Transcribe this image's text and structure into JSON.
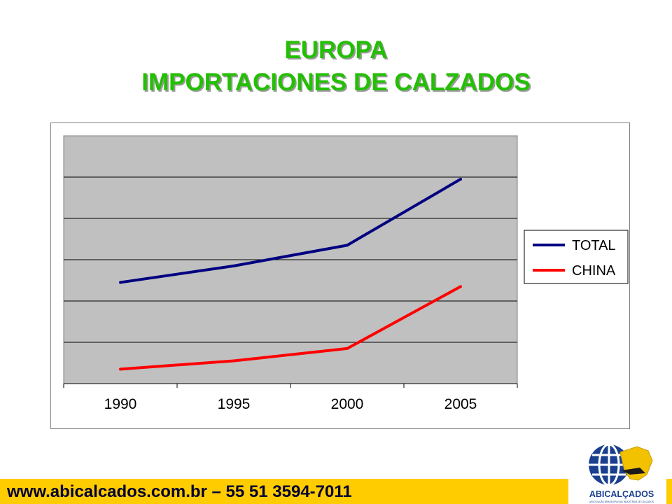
{
  "page": {
    "title_line1": "EUROPA",
    "title_line2": "IMPORTACIONES DE CALZADOS",
    "footer_text": "www.abicalcados.com.br – 55 51 3594-7011",
    "logo_text": "ABICALÇADOS",
    "logo_subtext": "ASSOCIAÇÃO BRASILEIRA DAS INDÚSTRIAS DE CALÇADOS",
    "colors": {
      "title": "#22c000",
      "plot_area": "#c0c0c0",
      "total_line": "#000080",
      "china_line": "#ff0000",
      "footer_bar": "#ffcc00"
    }
  },
  "chart_data": {
    "type": "line",
    "title": "",
    "xlabel": "",
    "ylabel": "",
    "categories": [
      "1990",
      "1995",
      "2000",
      "2005"
    ],
    "ylim": [
      0,
      6
    ],
    "grid": true,
    "y_tick_labels_shown": false,
    "legend_position": "right",
    "series": [
      {
        "name": "TOTAL",
        "color": "#000080",
        "values": [
          2.45,
          2.85,
          3.35,
          4.95
        ]
      },
      {
        "name": "CHINA",
        "color": "#ff0000",
        "values": [
          0.35,
          0.55,
          0.85,
          2.35
        ]
      }
    ]
  }
}
